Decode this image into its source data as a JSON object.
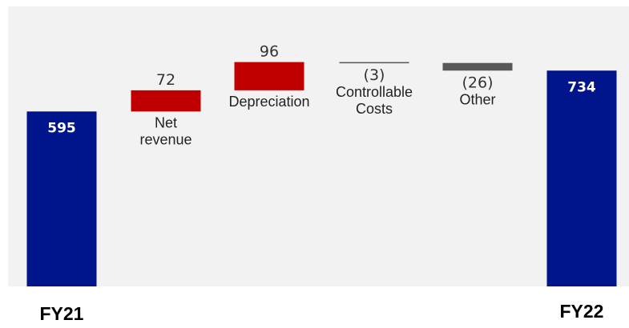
{
  "chart_data": {
    "type": "bar",
    "subtype": "waterfall",
    "categories": [
      "FY21",
      "Net revenue",
      "Depreciation",
      "Controllable Costs",
      "Other",
      "FY22"
    ],
    "steps": [
      {
        "kind": "total",
        "value": 595,
        "label": "595",
        "category_lines": [
          "FY21"
        ]
      },
      {
        "kind": "delta",
        "value": 72,
        "label": "72",
        "category_lines": [
          "Net",
          "revenue"
        ]
      },
      {
        "kind": "delta",
        "value": 96,
        "label": "96",
        "category_lines": [
          "Depreciation"
        ]
      },
      {
        "kind": "delta",
        "value": -3,
        "label": "(3)",
        "category_lines": [
          "Controllable",
          "Costs"
        ]
      },
      {
        "kind": "delta",
        "value": -26,
        "label": "(26)",
        "category_lines": [
          "Other"
        ]
      },
      {
        "kind": "total",
        "value": 734,
        "label": "734",
        "category_lines": [
          "FY22"
        ]
      }
    ],
    "colors": {
      "total": "#00148c",
      "increase": "#c00000",
      "decrease": "#58585a",
      "plot_background": "#f2f2f2"
    },
    "grid": false,
    "legend": "none"
  }
}
